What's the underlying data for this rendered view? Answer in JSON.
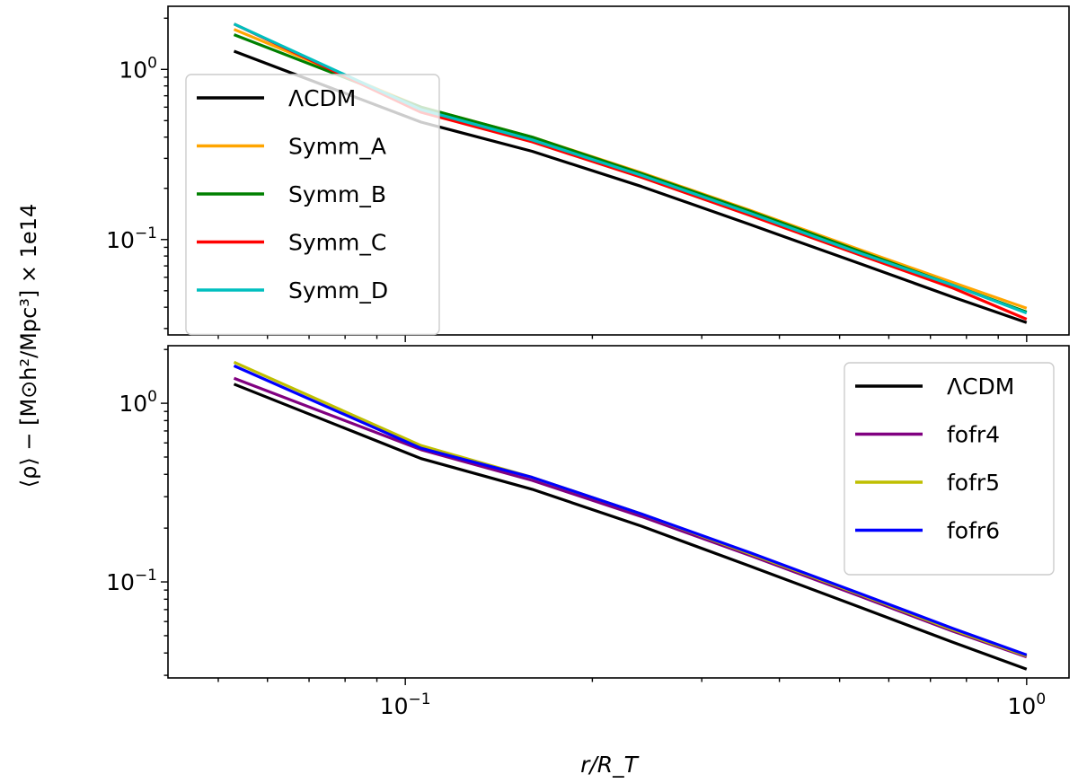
{
  "figure": {
    "shared_ylabel": "⟨ρ⟩ − [M⊙h²/Mpc³] × 1e14",
    "xlabel": "r/R_T"
  },
  "chart_data": [
    {
      "type": "line",
      "panel": "top",
      "xscale": "log",
      "yscale": "log",
      "xlim": [
        0.0415,
        1.17
      ],
      "ylim": [
        0.0275,
        2.35
      ],
      "x": [
        0.053,
        0.106,
        0.16,
        0.24,
        0.36,
        0.54,
        0.76,
        1.0
      ],
      "series": [
        {
          "name": "ΛCDM",
          "color": "#000000",
          "values": [
            1.28,
            0.49,
            0.33,
            0.205,
            0.122,
            0.072,
            0.046,
            0.0325
          ]
        },
        {
          "name": "Symm_A",
          "color": "#ffa500",
          "values": [
            1.72,
            0.6,
            0.4,
            0.247,
            0.148,
            0.087,
            0.056,
            0.0395
          ]
        },
        {
          "name": "Symm_B",
          "color": "#008000",
          "values": [
            1.6,
            0.6,
            0.4,
            0.244,
            0.146,
            0.085,
            0.054,
            0.0375
          ]
        },
        {
          "name": "Symm_C",
          "color": "#ff0000",
          "values": [
            1.85,
            0.56,
            0.375,
            0.232,
            0.138,
            0.081,
            0.052,
            0.034
          ]
        },
        {
          "name": "Symm_D",
          "color": "#00bfbf",
          "values": [
            1.85,
            0.58,
            0.385,
            0.238,
            0.142,
            0.083,
            0.054,
            0.037
          ]
        }
      ],
      "yticks": [
        {
          "value": 1.0,
          "label": "10^0"
        },
        {
          "value": 0.1,
          "label": "10^-1"
        }
      ],
      "legend": {
        "loc": "upper-left",
        "entries": [
          "ΛCDM",
          "Symm_A",
          "Symm_B",
          "Symm_C",
          "Symm_D"
        ]
      }
    },
    {
      "type": "line",
      "panel": "bottom",
      "xscale": "log",
      "yscale": "log",
      "xlim": [
        0.0415,
        1.17
      ],
      "ylim": [
        0.029,
        2.1
      ],
      "x": [
        0.053,
        0.106,
        0.16,
        0.24,
        0.36,
        0.54,
        0.76,
        1.0
      ],
      "series": [
        {
          "name": "ΛCDM",
          "color": "#000000",
          "values": [
            1.28,
            0.49,
            0.33,
            0.205,
            0.122,
            0.072,
            0.046,
            0.0325
          ]
        },
        {
          "name": "fofr4",
          "color": "#800080",
          "values": [
            1.38,
            0.55,
            0.37,
            0.232,
            0.14,
            0.083,
            0.053,
            0.038
          ]
        },
        {
          "name": "fofr5",
          "color": "#bfbf00",
          "values": [
            1.7,
            0.58,
            0.385,
            0.24,
            0.143,
            0.085,
            0.054,
            0.0385
          ]
        },
        {
          "name": "fofr6",
          "color": "#0000ff",
          "values": [
            1.62,
            0.56,
            0.385,
            0.24,
            0.145,
            0.086,
            0.055,
            0.039
          ]
        }
      ],
      "yticks": [
        {
          "value": 1.0,
          "label": "10^0"
        },
        {
          "value": 0.1,
          "label": "10^-1"
        }
      ],
      "xticks": [
        {
          "value": 0.1,
          "label": "10^-1"
        },
        {
          "value": 1.0,
          "label": "10^0"
        }
      ],
      "legend": {
        "loc": "upper-right",
        "entries": [
          "ΛCDM",
          "fofr4",
          "fofr5",
          "fofr6"
        ]
      }
    }
  ]
}
